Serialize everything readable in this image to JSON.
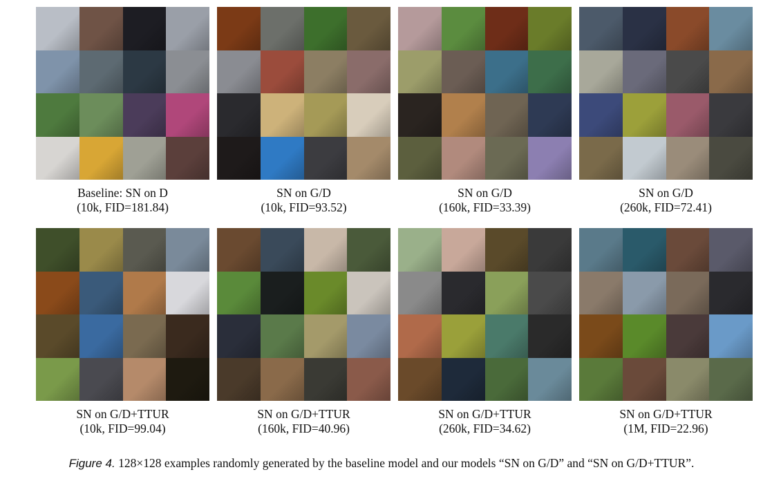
{
  "figure": {
    "panels": [
      {
        "title": "Baseline: SN on D",
        "subtitle": "(10k, FID=181.84)",
        "tiles": [
          "#b9bec6",
          "#6f5346",
          "#1d1d23",
          "#9a9fa8",
          "#7f93aa",
          "#5d6a72",
          "#2c3944",
          "#8b8e93",
          "#4e7a3e",
          "#6c8d5b",
          "#4b3c5a",
          "#b0477a",
          "#d7d5d2",
          "#d8a635",
          "#9fa095",
          "#5b3f3b"
        ]
      },
      {
        "title": "SN on G/D",
        "subtitle": "(10k, FID=93.52)",
        "tiles": [
          "#7b3a16",
          "#6c6f6a",
          "#3d6f2c",
          "#6a5a3e",
          "#8a8c92",
          "#9b4c3c",
          "#8c7e63",
          "#8a6c6a",
          "#2a2a2e",
          "#cdb27a",
          "#a59a57",
          "#d8cdbb",
          "#1e1a1a",
          "#2f7ac4",
          "#3c3c40",
          "#a48a6a"
        ]
      },
      {
        "title": "SN on G/D",
        "subtitle": "(160k, FID=33.39)",
        "tiles": [
          "#b59a9b",
          "#5b8c3f",
          "#6e2d18",
          "#6a7c2a",
          "#9c9d6a",
          "#6b5d54",
          "#3c6f8a",
          "#3d6e4a",
          "#2a2420",
          "#b1804c",
          "#6f6453",
          "#2e3a54",
          "#5c5f3e",
          "#b18a7d",
          "#6b6a54",
          "#8c7fb1"
        ]
      },
      {
        "title": "SN on G/D",
        "subtitle": "(260k, FID=72.41)",
        "tiles": [
          "#4c5a6a",
          "#2a3145",
          "#8a4a2a",
          "#6a8ca0",
          "#a8a89a",
          "#6a6a7a",
          "#4a4a4a",
          "#8a6a4a",
          "#3c4a7a",
          "#9ca03a",
          "#9a5a6a",
          "#3a3a3e",
          "#7a6a4a",
          "#c2cad0",
          "#9a8c7a",
          "#4a4a40"
        ]
      },
      {
        "title": "SN on G/D+TTUR",
        "subtitle": "(10k, FID=99.04)",
        "tiles": [
          "#3f4f2a",
          "#9a8a4a",
          "#5a5a50",
          "#7a8a9a",
          "#8a4a1a",
          "#3a5a7a",
          "#b07a4a",
          "#d8d8dc",
          "#5a4a2a",
          "#3a6aa0",
          "#7a6a50",
          "#3a2a1e",
          "#7a9a4a",
          "#4a4a50",
          "#b58a6a",
          "#1e1a10"
        ]
      },
      {
        "title": "SN on G/D+TTUR",
        "subtitle": "(160k, FID=40.96)",
        "tiles": [
          "#6a4a30",
          "#3a4a5a",
          "#c8b8a8",
          "#4a5a3a",
          "#5a8a3a",
          "#1a1e1e",
          "#6a8a2a",
          "#cac4bc",
          "#2a2e3a",
          "#5a7a4a",
          "#a49a6a",
          "#7a8aa0",
          "#4a3a2a",
          "#8a6a4a",
          "#3a3a34",
          "#8a5a4a"
        ]
      },
      {
        "title": "SN on G/D+TTUR",
        "subtitle": "(260k, FID=34.62)",
        "tiles": [
          "#9ab08a",
          "#c8a89a",
          "#5a4a2a",
          "#3a3a3a",
          "#8a8a8a",
          "#2a2a2e",
          "#8aa05a",
          "#4a4a4a",
          "#b06a4a",
          "#9aa03a",
          "#4a7a6a",
          "#2a2a2a",
          "#6a4a2a",
          "#1e2a3a",
          "#4a6a3a",
          "#6a8a9a"
        ]
      },
      {
        "title": "SN on G/D+TTUR",
        "subtitle": "(1M, FID=22.96)",
        "tiles": [
          "#5a7a8a",
          "#2a5a6a",
          "#6a4a3a",
          "#5a5a6a",
          "#8a7a6a",
          "#8a9aaa",
          "#7a6a5a",
          "#2a2a2e",
          "#7a4a1a",
          "#5a8a2a",
          "#4a3a3a",
          "#6a9ac8",
          "#5a7a3a",
          "#6a4a3a",
          "#8a8a6a",
          "#5a6a4a"
        ]
      }
    ],
    "caption_label": "Figure 4.",
    "caption_text": "128×128 examples randomly generated by the baseline model and our models “SN on G/D” and “SN on G/D+TTUR”."
  }
}
